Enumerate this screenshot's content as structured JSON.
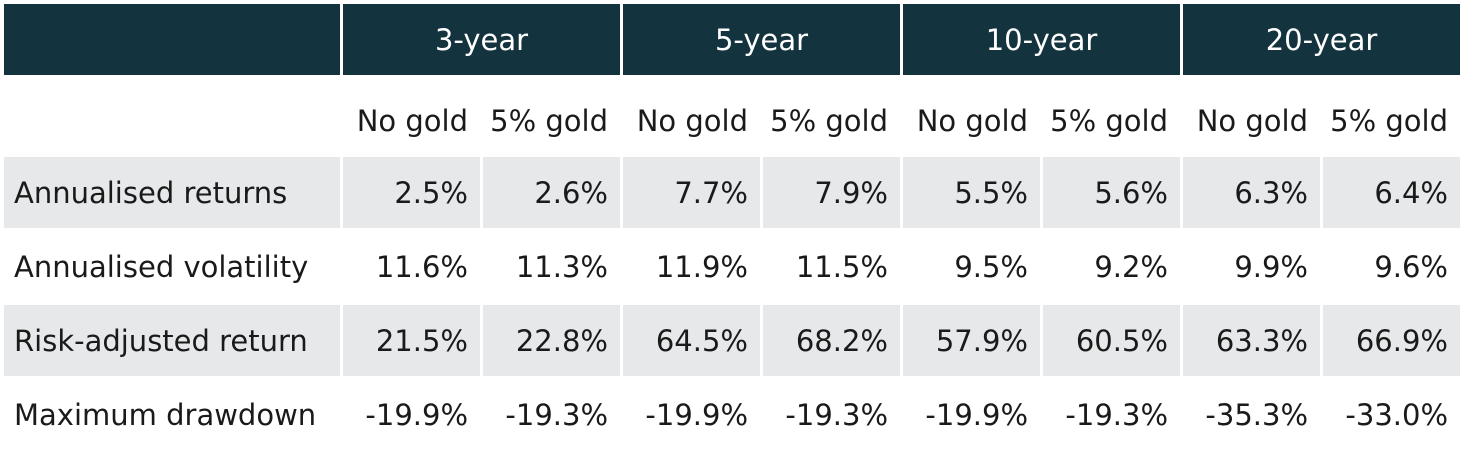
{
  "chart_data": {
    "type": "table",
    "column_groups": [
      "3-year",
      "5-year",
      "10-year",
      "20-year"
    ],
    "sub_columns": [
      "No gold",
      "5% gold"
    ],
    "rows": [
      {
        "label": "Annualised returns",
        "values": [
          "2.5%",
          "2.6%",
          "7.7%",
          "7.9%",
          "5.5%",
          "5.6%",
          "6.3%",
          "6.4%"
        ]
      },
      {
        "label": "Annualised volatility",
        "values": [
          "11.6%",
          "11.3%",
          "11.9%",
          "11.5%",
          "9.5%",
          "9.2%",
          "9.9%",
          "9.6%"
        ]
      },
      {
        "label": "Risk-adjusted return",
        "values": [
          "21.5%",
          "22.8%",
          "64.5%",
          "68.2%",
          "57.9%",
          "60.5%",
          "63.3%",
          "66.9%"
        ]
      },
      {
        "label": "Maximum drawdown",
        "values": [
          "-19.9%",
          "-19.3%",
          "-19.9%",
          "-19.3%",
          "-19.9%",
          "-19.3%",
          "-35.3%",
          "-33.0%"
        ]
      }
    ]
  },
  "colors": {
    "header_bg": "#13333e",
    "header_text": "#ffffff",
    "shaded_row_bg": "#e6e8e9"
  }
}
